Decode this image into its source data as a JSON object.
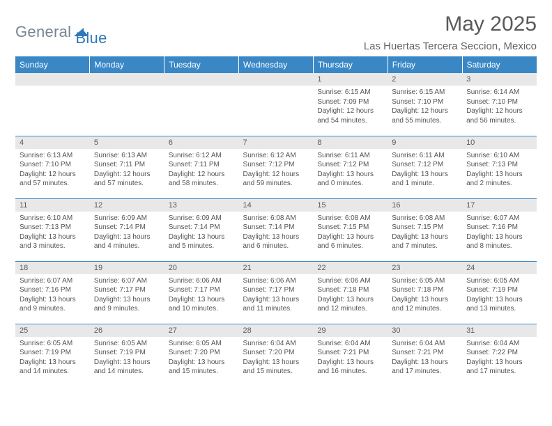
{
  "brand": {
    "part1": "General",
    "part2": "Blue"
  },
  "title": "May 2025",
  "location": "Las Huertas Tercera Seccion, Mexico",
  "colors": {
    "header_bg": "#3a87c5",
    "header_text": "#ffffff",
    "daynum_bg": "#e8e8e8",
    "body_text": "#535353",
    "border": "#3a87c5",
    "logo_general": "#768492",
    "logo_blue": "#2f78b8"
  },
  "day_headers": [
    "Sunday",
    "Monday",
    "Tuesday",
    "Wednesday",
    "Thursday",
    "Friday",
    "Saturday"
  ],
  "weeks": [
    [
      null,
      null,
      null,
      null,
      {
        "num": "1",
        "sunrise": "6:15 AM",
        "sunset": "7:09 PM",
        "daylight": "12 hours and 54 minutes."
      },
      {
        "num": "2",
        "sunrise": "6:15 AM",
        "sunset": "7:10 PM",
        "daylight": "12 hours and 55 minutes."
      },
      {
        "num": "3",
        "sunrise": "6:14 AM",
        "sunset": "7:10 PM",
        "daylight": "12 hours and 56 minutes."
      }
    ],
    [
      {
        "num": "4",
        "sunrise": "6:13 AM",
        "sunset": "7:10 PM",
        "daylight": "12 hours and 57 minutes."
      },
      {
        "num": "5",
        "sunrise": "6:13 AM",
        "sunset": "7:11 PM",
        "daylight": "12 hours and 57 minutes."
      },
      {
        "num": "6",
        "sunrise": "6:12 AM",
        "sunset": "7:11 PM",
        "daylight": "12 hours and 58 minutes."
      },
      {
        "num": "7",
        "sunrise": "6:12 AM",
        "sunset": "7:12 PM",
        "daylight": "12 hours and 59 minutes."
      },
      {
        "num": "8",
        "sunrise": "6:11 AM",
        "sunset": "7:12 PM",
        "daylight": "13 hours and 0 minutes."
      },
      {
        "num": "9",
        "sunrise": "6:11 AM",
        "sunset": "7:12 PM",
        "daylight": "13 hours and 1 minute."
      },
      {
        "num": "10",
        "sunrise": "6:10 AM",
        "sunset": "7:13 PM",
        "daylight": "13 hours and 2 minutes."
      }
    ],
    [
      {
        "num": "11",
        "sunrise": "6:10 AM",
        "sunset": "7:13 PM",
        "daylight": "13 hours and 3 minutes."
      },
      {
        "num": "12",
        "sunrise": "6:09 AM",
        "sunset": "7:14 PM",
        "daylight": "13 hours and 4 minutes."
      },
      {
        "num": "13",
        "sunrise": "6:09 AM",
        "sunset": "7:14 PM",
        "daylight": "13 hours and 5 minutes."
      },
      {
        "num": "14",
        "sunrise": "6:08 AM",
        "sunset": "7:14 PM",
        "daylight": "13 hours and 6 minutes."
      },
      {
        "num": "15",
        "sunrise": "6:08 AM",
        "sunset": "7:15 PM",
        "daylight": "13 hours and 6 minutes."
      },
      {
        "num": "16",
        "sunrise": "6:08 AM",
        "sunset": "7:15 PM",
        "daylight": "13 hours and 7 minutes."
      },
      {
        "num": "17",
        "sunrise": "6:07 AM",
        "sunset": "7:16 PM",
        "daylight": "13 hours and 8 minutes."
      }
    ],
    [
      {
        "num": "18",
        "sunrise": "6:07 AM",
        "sunset": "7:16 PM",
        "daylight": "13 hours and 9 minutes."
      },
      {
        "num": "19",
        "sunrise": "6:07 AM",
        "sunset": "7:17 PM",
        "daylight": "13 hours and 9 minutes."
      },
      {
        "num": "20",
        "sunrise": "6:06 AM",
        "sunset": "7:17 PM",
        "daylight": "13 hours and 10 minutes."
      },
      {
        "num": "21",
        "sunrise": "6:06 AM",
        "sunset": "7:17 PM",
        "daylight": "13 hours and 11 minutes."
      },
      {
        "num": "22",
        "sunrise": "6:06 AM",
        "sunset": "7:18 PM",
        "daylight": "13 hours and 12 minutes."
      },
      {
        "num": "23",
        "sunrise": "6:05 AM",
        "sunset": "7:18 PM",
        "daylight": "13 hours and 12 minutes."
      },
      {
        "num": "24",
        "sunrise": "6:05 AM",
        "sunset": "7:19 PM",
        "daylight": "13 hours and 13 minutes."
      }
    ],
    [
      {
        "num": "25",
        "sunrise": "6:05 AM",
        "sunset": "7:19 PM",
        "daylight": "13 hours and 14 minutes."
      },
      {
        "num": "26",
        "sunrise": "6:05 AM",
        "sunset": "7:19 PM",
        "daylight": "13 hours and 14 minutes."
      },
      {
        "num": "27",
        "sunrise": "6:05 AM",
        "sunset": "7:20 PM",
        "daylight": "13 hours and 15 minutes."
      },
      {
        "num": "28",
        "sunrise": "6:04 AM",
        "sunset": "7:20 PM",
        "daylight": "13 hours and 15 minutes."
      },
      {
        "num": "29",
        "sunrise": "6:04 AM",
        "sunset": "7:21 PM",
        "daylight": "13 hours and 16 minutes."
      },
      {
        "num": "30",
        "sunrise": "6:04 AM",
        "sunset": "7:21 PM",
        "daylight": "13 hours and 17 minutes."
      },
      {
        "num": "31",
        "sunrise": "6:04 AM",
        "sunset": "7:22 PM",
        "daylight": "13 hours and 17 minutes."
      }
    ]
  ],
  "labels": {
    "sunrise": "Sunrise:",
    "sunset": "Sunset:",
    "daylight": "Daylight:"
  }
}
